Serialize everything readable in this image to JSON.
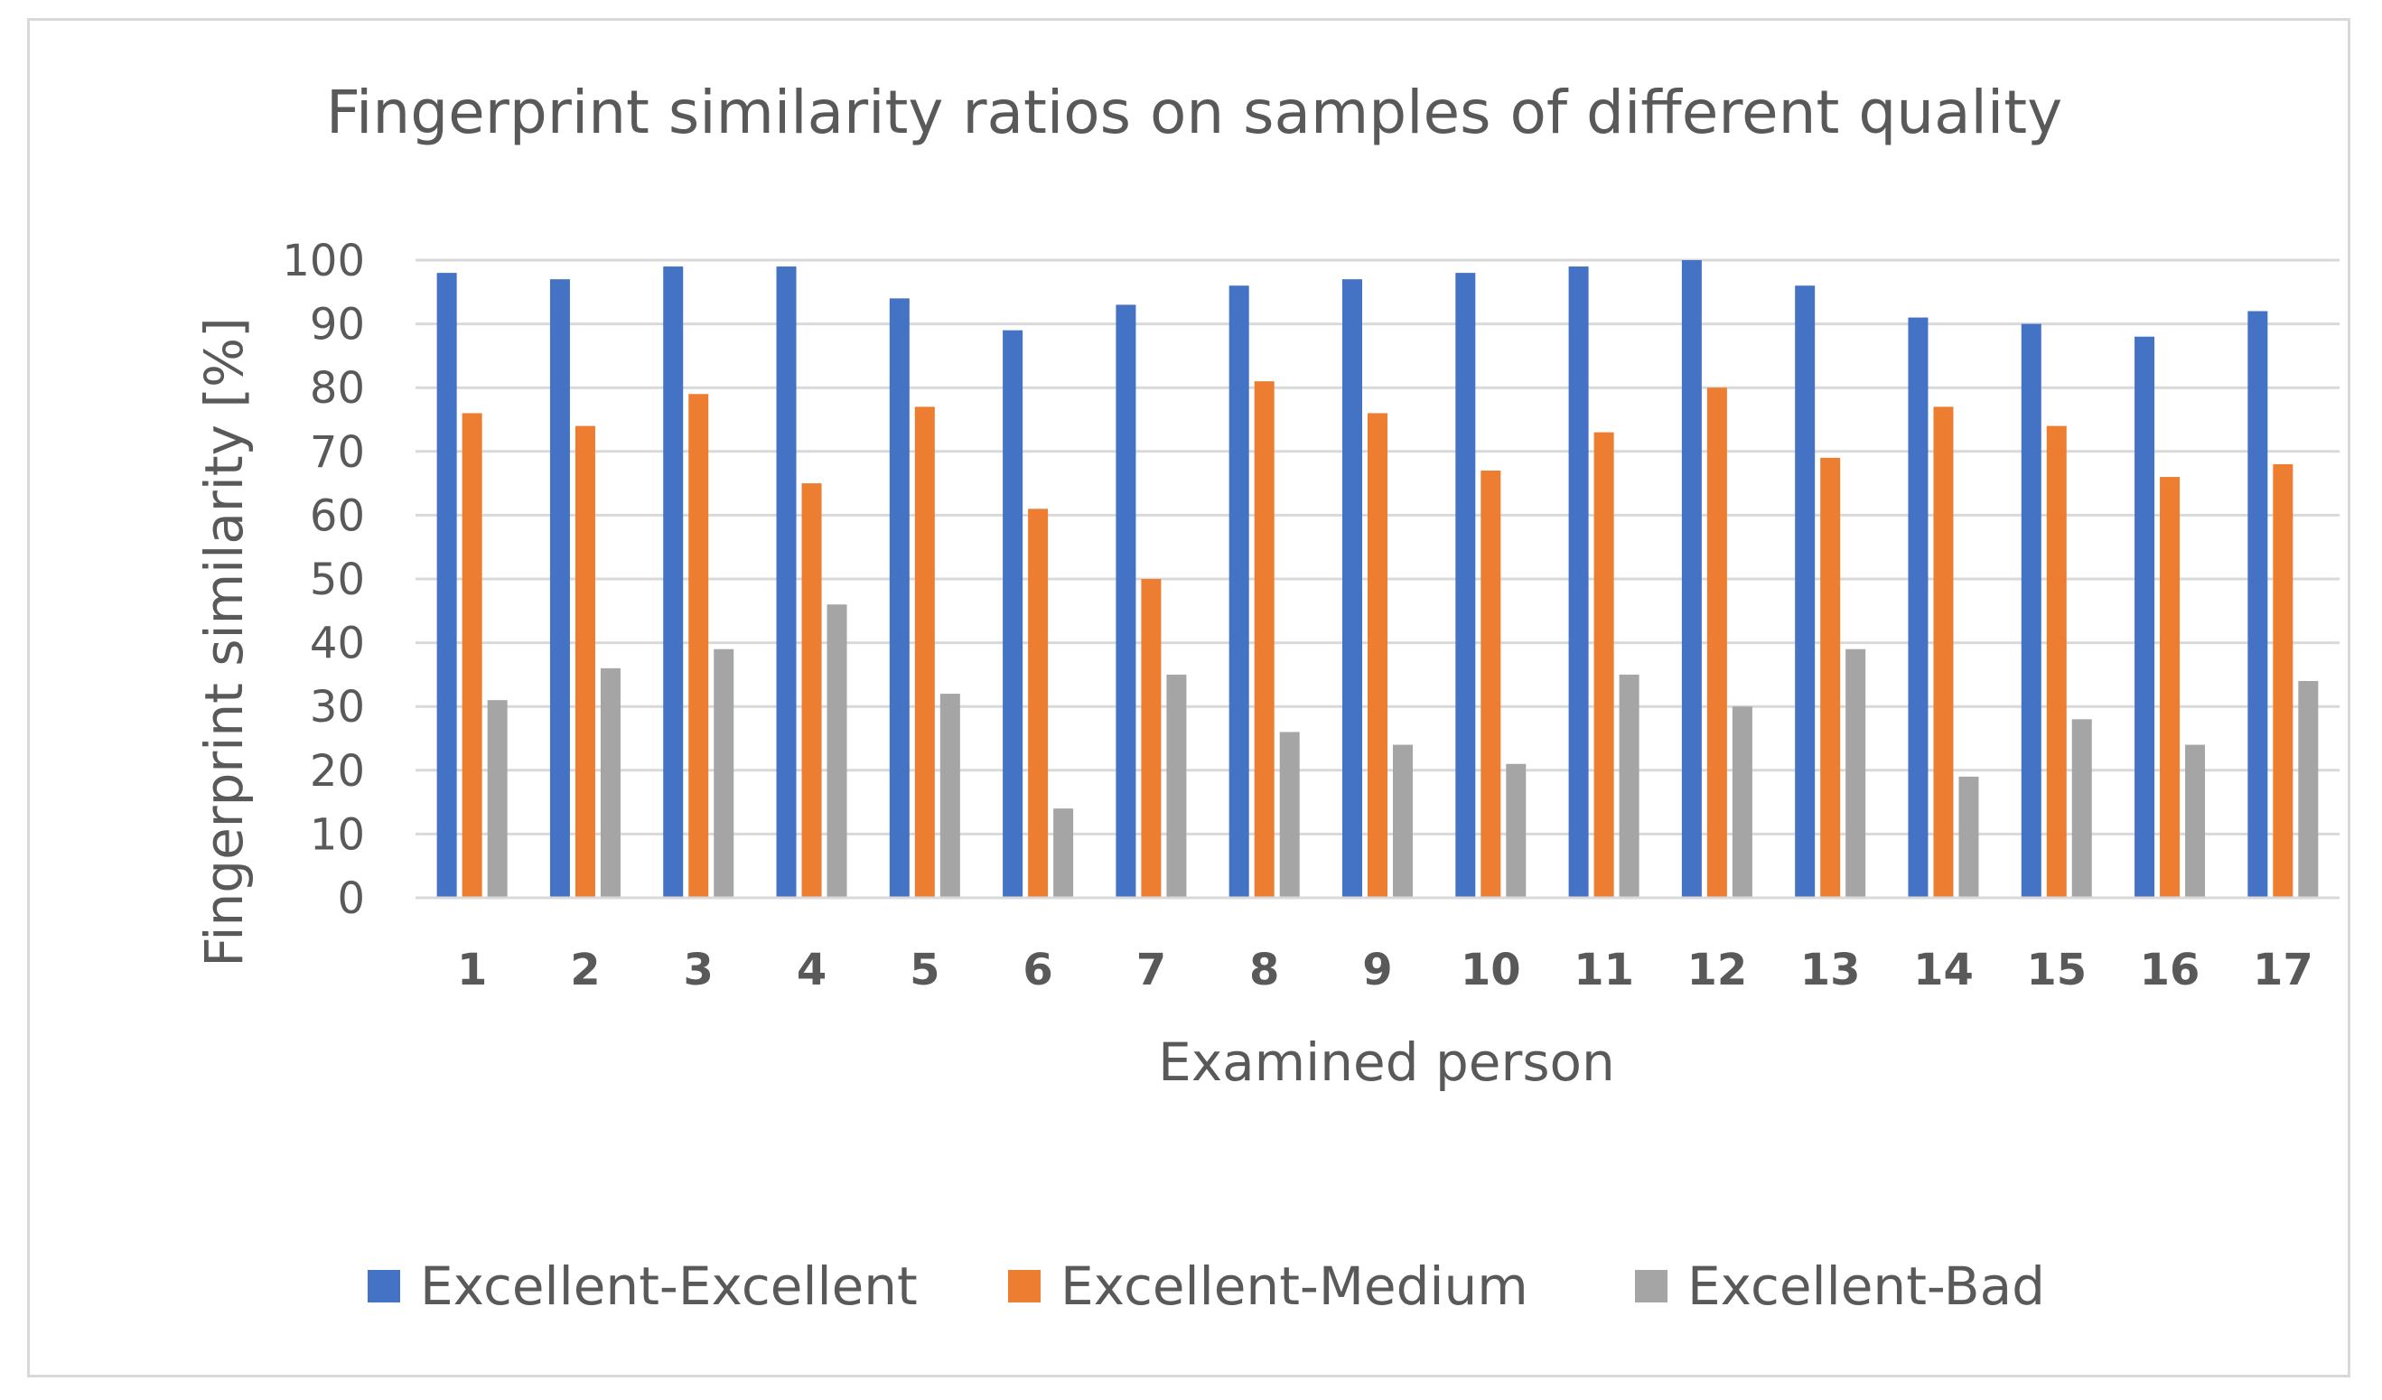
{
  "chart_data": {
    "type": "bar",
    "title": "Fingerprint similarity ratios on samples of different quality",
    "xlabel": "Examined person",
    "ylabel": "Fingerprint similarity [%]",
    "ylim": [
      0,
      100
    ],
    "yticks": [
      0,
      10,
      20,
      30,
      40,
      50,
      60,
      70,
      80,
      90,
      100
    ],
    "grid": true,
    "legend_position": "bottom",
    "categories": [
      "1",
      "2",
      "3",
      "4",
      "5",
      "6",
      "7",
      "8",
      "9",
      "10",
      "11",
      "12",
      "13",
      "14",
      "15",
      "16",
      "17"
    ],
    "series": [
      {
        "name": "Excellent-Excellent",
        "color": "#4472C4",
        "values": [
          98,
          97,
          99,
          99,
          94,
          89,
          93,
          96,
          97,
          98,
          99,
          100,
          96,
          91,
          90,
          88,
          92
        ]
      },
      {
        "name": "Excellent-Medium",
        "color": "#ED7D31",
        "values": [
          76,
          74,
          79,
          65,
          77,
          61,
          50,
          81,
          76,
          67,
          73,
          80,
          69,
          77,
          74,
          66,
          68
        ]
      },
      {
        "name": "Excellent-Bad",
        "color": "#A5A5A5",
        "values": [
          31,
          36,
          39,
          46,
          32,
          14,
          35,
          26,
          24,
          21,
          35,
          30,
          39,
          19,
          28,
          24,
          34
        ]
      }
    ]
  }
}
